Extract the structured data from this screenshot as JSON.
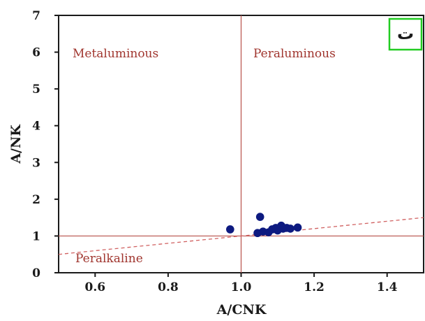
{
  "chart_data": {
    "type": "scatter",
    "xlabel": "A/CNK",
    "ylabel": "A/NK",
    "xlim": [
      0.5,
      1.5
    ],
    "ylim": [
      0,
      7
    ],
    "xticks": [
      "0.6",
      "0.8",
      "1.0",
      "1.2",
      "1.4"
    ],
    "yticks": [
      "0",
      "1",
      "2",
      "3",
      "4",
      "5",
      "6",
      "7"
    ],
    "grid": false,
    "panel_label": "ت",
    "panel_label_box_color": "#22cc22",
    "regions": [
      {
        "label": "Metaluminous"
      },
      {
        "label": "Peraluminous"
      },
      {
        "label": "Peralkaline"
      }
    ],
    "reference_lines": [
      {
        "type": "vertical",
        "x": 1.0,
        "color": "#b8504a",
        "style": "solid"
      },
      {
        "type": "horizontal",
        "y": 1.0,
        "color": "#b8504a",
        "style": "solid"
      },
      {
        "type": "dashed-line",
        "from": [
          0.5,
          0.5
        ],
        "to": [
          1.5,
          1.5
        ],
        "color": "#d06060",
        "style": "dashed"
      }
    ],
    "series": [
      {
        "color": "#0d1a80",
        "points": [
          {
            "x": 0.97,
            "y": 1.18
          },
          {
            "x": 1.045,
            "y": 1.08
          },
          {
            "x": 1.052,
            "y": 1.52
          },
          {
            "x": 1.06,
            "y": 1.12
          },
          {
            "x": 1.075,
            "y": 1.1
          },
          {
            "x": 1.085,
            "y": 1.18
          },
          {
            "x": 1.095,
            "y": 1.22
          },
          {
            "x": 1.1,
            "y": 1.15
          },
          {
            "x": 1.11,
            "y": 1.28
          },
          {
            "x": 1.115,
            "y": 1.2
          },
          {
            "x": 1.125,
            "y": 1.22
          },
          {
            "x": 1.135,
            "y": 1.2
          },
          {
            "x": 1.155,
            "y": 1.23
          }
        ]
      }
    ]
  },
  "colors": {
    "axis": "#1a1a1a",
    "reference": "#b8504a",
    "region_text": "#a0352e",
    "points": "#0d1a80"
  }
}
